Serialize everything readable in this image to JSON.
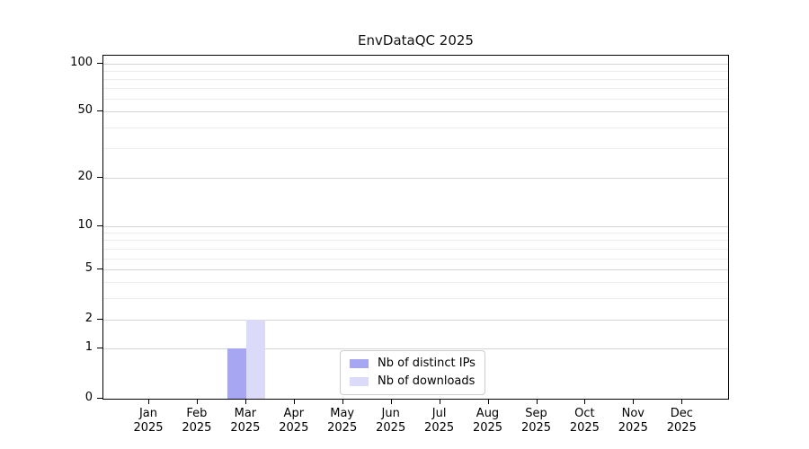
{
  "chart_data": {
    "type": "bar",
    "title": "EnvDataQC 2025",
    "categories": [
      "Jan",
      "Feb",
      "Mar",
      "Apr",
      "May",
      "Jun",
      "Jul",
      "Aug",
      "Sep",
      "Oct",
      "Nov",
      "Dec"
    ],
    "year_label": "2025",
    "series": [
      {
        "name": "Nb of distinct IPs",
        "color": "#a6a6f3",
        "values": [
          0,
          0,
          1,
          0,
          0,
          0,
          0,
          0,
          0,
          0,
          0,
          0
        ]
      },
      {
        "name": "Nb of downloads",
        "color": "#dbdbf9",
        "values": [
          0,
          0,
          2,
          0,
          0,
          0,
          0,
          0,
          0,
          0,
          0,
          0
        ]
      }
    ],
    "xlabel": "",
    "ylabel": "",
    "y_axis": {
      "scale": "symlog",
      "major_ticks": [
        0,
        1,
        2,
        5,
        10,
        20,
        50,
        100
      ],
      "minor_ticks": [
        3,
        4,
        6,
        7,
        8,
        9,
        30,
        40,
        60,
        70,
        80,
        90
      ]
    },
    "grid": {
      "horizontal": true,
      "vertical": false
    },
    "legend": {
      "position": "bottom-center-inside",
      "entries": [
        "Nb of distinct IPs",
        "Nb of downloads"
      ]
    },
    "layout_hints": {
      "y_anchors": [
        [
          0,
          1.0
        ],
        [
          1,
          0.854
        ],
        [
          2,
          0.77
        ],
        [
          5,
          0.624
        ],
        [
          10,
          0.496
        ],
        [
          20,
          0.355
        ],
        [
          50,
          0.162
        ],
        [
          100,
          0.0235
        ]
      ],
      "x_first_frac": 0.0734,
      "x_step_frac": 0.0776,
      "bar_width_frac": 0.0302
    }
  }
}
